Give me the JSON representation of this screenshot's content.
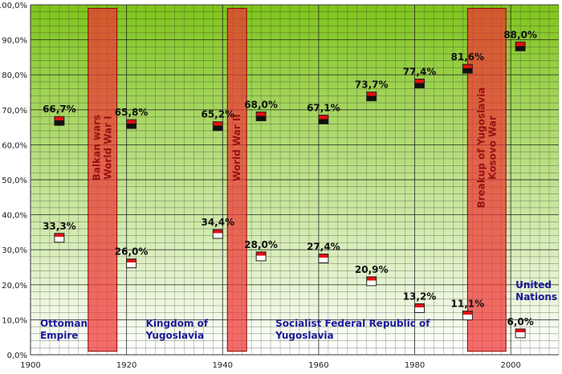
{
  "chart_data": {
    "type": "scatter",
    "xlim": [
      1900,
      2010
    ],
    "ylim": [
      0,
      100
    ],
    "x_ticks": [
      "1900",
      "1920",
      "1940",
      "1960",
      "1980",
      "2000"
    ],
    "y_ticks": [
      "0,0%",
      "10,0%",
      "20,0%",
      "30,0%",
      "40,0%",
      "50,0%",
      "60,0%",
      "70,0%",
      "80,0%",
      "90,0%",
      "100,0%"
    ],
    "grid": true,
    "background_gradient": [
      "#7fc41c",
      "#ffffff"
    ],
    "series": [
      {
        "color": "#111111",
        "points": [
          {
            "x": 1906,
            "y": 66.7,
            "label": "66,7%"
          },
          {
            "x": 1921,
            "y": 65.8,
            "label": "65,8%"
          },
          {
            "x": 1939,
            "y": 65.2,
            "label": "65,2%"
          },
          {
            "x": 1948,
            "y": 68.0,
            "label": "68,0%"
          },
          {
            "x": 1961,
            "y": 67.1,
            "label": "67,1%"
          },
          {
            "x": 1971,
            "y": 73.7,
            "label": "73,7%"
          },
          {
            "x": 1981,
            "y": 77.4,
            "label": "77,4%"
          },
          {
            "x": 1991,
            "y": 81.6,
            "label": "81,6%"
          },
          {
            "x": 2002,
            "y": 88.0,
            "label": "88,0%"
          }
        ]
      },
      {
        "color": "#ffffff",
        "points": [
          {
            "x": 1906,
            "y": 33.3,
            "label": "33,3%"
          },
          {
            "x": 1921,
            "y": 26.0,
            "label": "26,0%"
          },
          {
            "x": 1939,
            "y": 34.4,
            "label": "34,4%"
          },
          {
            "x": 1948,
            "y": 28.0,
            "label": "28,0%"
          },
          {
            "x": 1961,
            "y": 27.4,
            "label": "27,4%"
          },
          {
            "x": 1971,
            "y": 20.9,
            "label": "20,9%"
          },
          {
            "x": 1981,
            "y": 13.2,
            "label": "13,2%"
          },
          {
            "x": 1991,
            "y": 11.1,
            "label": "11,1%"
          },
          {
            "x": 2002,
            "y": 6.0,
            "label": "6,0%"
          }
        ]
      }
    ],
    "event_bands": [
      {
        "from": 1912,
        "to": 1918,
        "lines": [
          "Balkan wars",
          "World War I"
        ],
        "color": "#ee3333"
      },
      {
        "from": 1941,
        "to": 1945,
        "lines": [
          "World War II"
        ],
        "color": "#ee3333"
      },
      {
        "from": 1991,
        "to": 1999,
        "lines": [
          "Breakup of Yugoslavia",
          "Kosovo War"
        ],
        "color": "#ee3333"
      }
    ],
    "eras": [
      {
        "lines": [
          "Ottoman",
          "Empire"
        ],
        "x": 1902,
        "y": 8
      },
      {
        "lines": [
          "Kingdom of",
          "Yugoslavia"
        ],
        "x": 1924,
        "y": 8
      },
      {
        "lines": [
          "Socialist Federal Republic of",
          "Yugoslavia"
        ],
        "x": 1951,
        "y": 8
      },
      {
        "lines": [
          "United",
          "Nations"
        ],
        "x": 2001,
        "y": 19
      }
    ]
  }
}
